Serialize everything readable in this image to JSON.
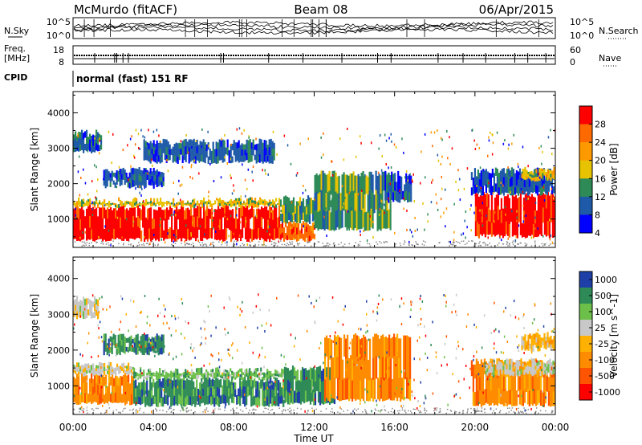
{
  "header": {
    "station": "McMurdo (fitACF)",
    "beam": "Beam 08",
    "date": "06/Apr/2015"
  },
  "top_panels": {
    "nsky_label": "N.Sky",
    "nsky_ticks": [
      "10^5",
      "10^0"
    ],
    "nsearch_label": "N.Search",
    "nsearch_ticks": [
      "10^5",
      "10^0"
    ],
    "freq_label": "Freq.",
    "freq_unit": "[MHz]",
    "freq_ticks": [
      "18",
      "8"
    ],
    "nave_label": "Nave",
    "nave_ticks": [
      "60",
      "0"
    ],
    "cpid_label": "CPID",
    "cpid_text": "normal (fast) 151 RF"
  },
  "chart_data": [
    {
      "type": "heatmap",
      "name": "power-panel",
      "xlabel": "Time UT",
      "ylabel": "Slant Range [km]",
      "xlim": [
        0,
        24
      ],
      "ylim": [
        200,
        4600
      ],
      "xticks": [
        "00:00",
        "04:00",
        "08:00",
        "12:00",
        "16:00",
        "20:00",
        "00:00"
      ],
      "yticks": [
        1000,
        2000,
        3000,
        4000
      ],
      "colorbar": {
        "label": "Power [dB]",
        "ticks": [
          "28",
          "24",
          "20",
          "16",
          "12",
          "8",
          "4"
        ],
        "colors": [
          "#ff0000",
          "#ff6a00",
          "#ff9900",
          "#e6c200",
          "#2e8b57",
          "#1e5aa8",
          "#0000ff"
        ]
      },
      "regions": [
        {
          "t": [
            0.0,
            10.3
          ],
          "r": [
            400,
            1350
          ],
          "level": 28
        },
        {
          "t": [
            0.0,
            10.3
          ],
          "r": [
            1350,
            1550
          ],
          "level": 16
        },
        {
          "t": [
            0.0,
            1.4
          ],
          "r": [
            2900,
            3450
          ],
          "level": 8
        },
        {
          "t": [
            1.5,
            4.5
          ],
          "r": [
            1900,
            2400
          ],
          "level": 8
        },
        {
          "t": [
            3.5,
            10.0
          ],
          "r": [
            2600,
            3200
          ],
          "level": 8
        },
        {
          "t": [
            10.3,
            12.0
          ],
          "r": [
            400,
            900
          ],
          "level": 24
        },
        {
          "t": [
            10.3,
            13.0
          ],
          "r": [
            900,
            1600
          ],
          "level": 12
        },
        {
          "t": [
            12.0,
            15.8
          ],
          "r": [
            700,
            2300
          ],
          "level": 12
        },
        {
          "t": [
            15.5,
            16.8
          ],
          "r": [
            1500,
            2300
          ],
          "level": 8
        },
        {
          "t": [
            20.0,
            24.0
          ],
          "r": [
            500,
            1700
          ],
          "level": 28
        },
        {
          "t": [
            19.8,
            24.0
          ],
          "r": [
            1700,
            2400
          ],
          "level": 8
        },
        {
          "t": [
            22.3,
            24.0
          ],
          "r": [
            2100,
            2400
          ],
          "level": 16
        }
      ]
    },
    {
      "type": "heatmap",
      "name": "velocity-panel",
      "xlabel": "Time UT",
      "ylabel": "Slant Range [km]",
      "xlim": [
        0,
        24
      ],
      "ylim": [
        200,
        4600
      ],
      "xticks": [
        "00:00",
        "04:00",
        "08:00",
        "12:00",
        "16:00",
        "20:00",
        "00:00"
      ],
      "yticks": [
        1000,
        2000,
        3000,
        4000
      ],
      "colorbar": {
        "label": "Velocity [m s^-1]",
        "ticks": [
          "1000",
          "500",
          "100",
          "25",
          "-25",
          "-100",
          "-500",
          "-1000"
        ],
        "colors": [
          "#1e3fa8",
          "#2e8b57",
          "#6cc04a",
          "#c8c8c8",
          "#ffb000",
          "#ff8c00",
          "#ff5500",
          "#ff0000"
        ]
      },
      "regions": [
        {
          "t": [
            0.0,
            3.0
          ],
          "r": [
            500,
            1300
          ],
          "level": -100
        },
        {
          "t": [
            0.0,
            3.0
          ],
          "r": [
            1300,
            1600
          ],
          "level": 25
        },
        {
          "t": [
            3.0,
            10.5
          ],
          "r": [
            450,
            1200
          ],
          "level": 500
        },
        {
          "t": [
            3.0,
            10.5
          ],
          "r": [
            1200,
            1450
          ],
          "level": 100
        },
        {
          "t": [
            0.0,
            1.2
          ],
          "r": [
            2900,
            3450
          ],
          "level": 25
        },
        {
          "t": [
            1.5,
            4.5
          ],
          "r": [
            1900,
            2400
          ],
          "level": 500
        },
        {
          "t": [
            10.5,
            13.0
          ],
          "r": [
            500,
            1500
          ],
          "level": 500
        },
        {
          "t": [
            12.5,
            16.8
          ],
          "r": [
            600,
            2400
          ],
          "level": -100
        },
        {
          "t": [
            19.8,
            24.0
          ],
          "r": [
            450,
            1700
          ],
          "level": -100
        },
        {
          "t": [
            20.5,
            24.0
          ],
          "r": [
            1300,
            1700
          ],
          "level": 25
        },
        {
          "t": [
            22.3,
            24.0
          ],
          "r": [
            2000,
            2450
          ],
          "level": -25
        }
      ]
    }
  ]
}
